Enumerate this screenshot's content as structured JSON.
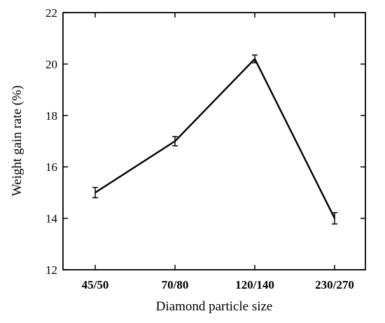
{
  "chart_data": {
    "type": "line",
    "categories": [
      "45/50",
      "70/80",
      "120/140",
      "230/270"
    ],
    "series": [
      {
        "values": [
          15.0,
          17.0,
          20.2,
          14.0
        ],
        "errors": [
          0.2,
          0.18,
          0.15,
          0.22
        ]
      }
    ],
    "xlabel": "Diamond particle size",
    "ylabel": "Weight gain rate (%)",
    "ylim": [
      12,
      22
    ],
    "yticks": [
      12,
      14,
      16,
      18,
      20,
      22
    ],
    "grid": false,
    "legend": "none",
    "colors": {
      "line": "#000000",
      "axes": "#000000",
      "background": "#ffffff"
    }
  }
}
